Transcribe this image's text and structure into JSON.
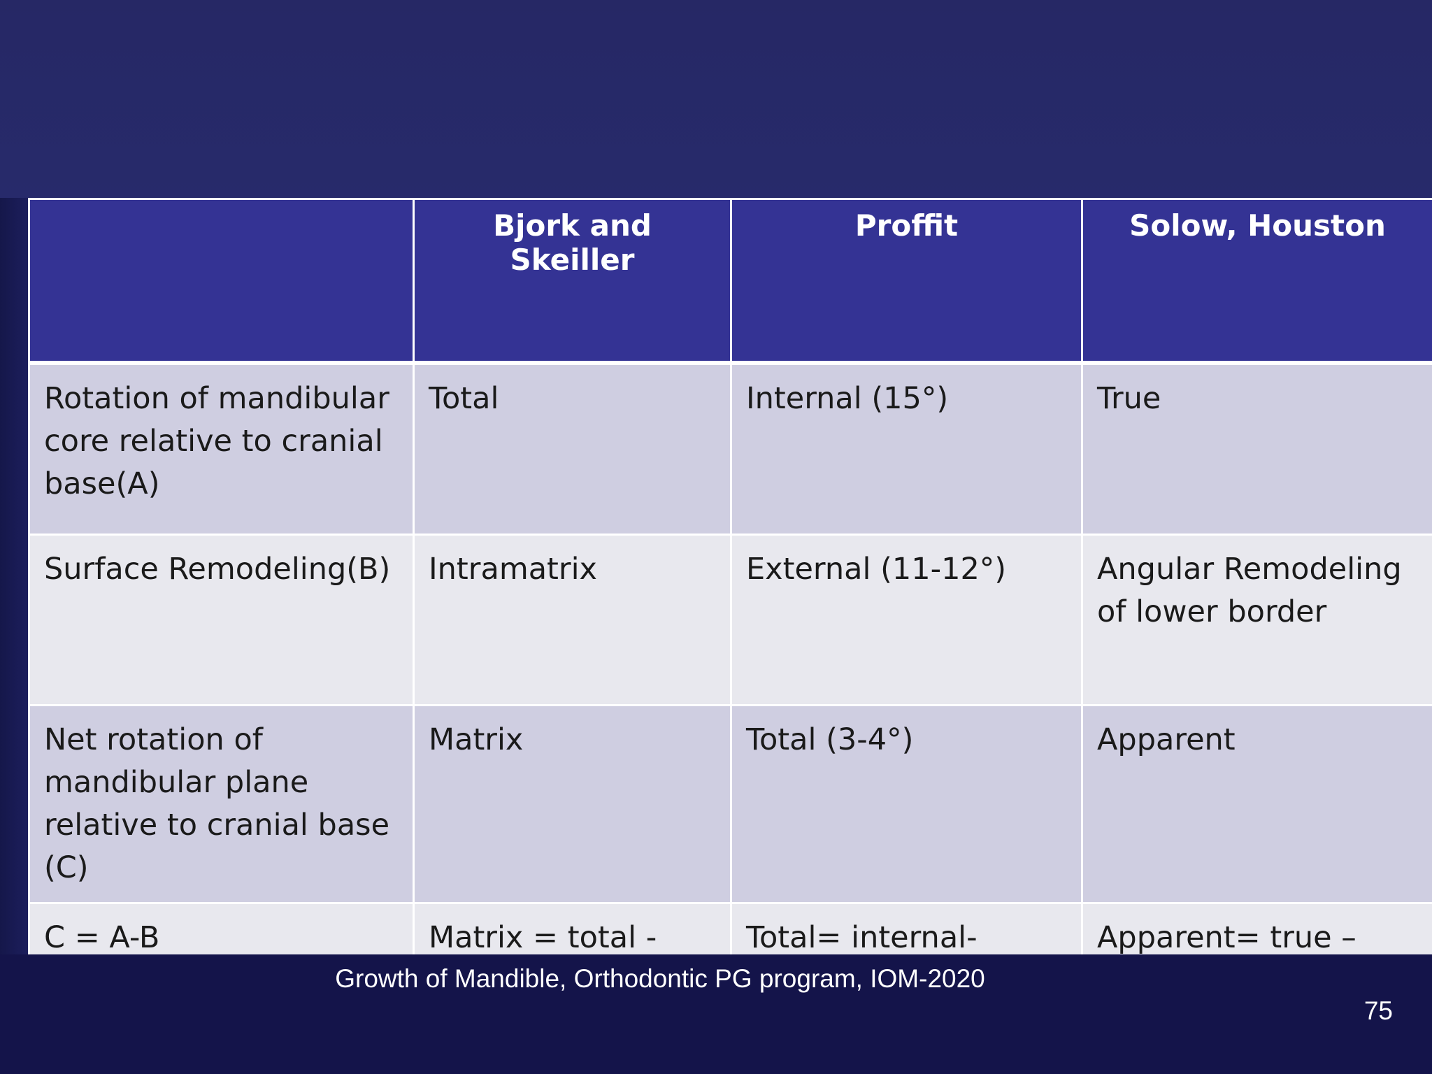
{
  "table": {
    "headers": [
      "",
      "Bjork and Skeiller",
      "Proffit",
      "Solow, Houston"
    ],
    "rows": [
      [
        "Rotation of mandibular core relative to cranial base(A)",
        "Total",
        "Internal (15°)",
        "True"
      ],
      [
        "Surface Remodeling(B)",
        "Intramatrix",
        "External (11-12°)",
        "Angular Remodeling of lower border"
      ],
      [
        "Net rotation of mandibular plane relative to cranial base (C)",
        "Matrix",
        "Total (3-4°)",
        "Apparent"
      ],
      [
        "C = A-B",
        "Matrix = total - intramatrix",
        "Total= internal-external",
        "Apparent= true – angular remodeling"
      ]
    ]
  },
  "footer": {
    "text": "Growth of Mandible, Orthodontic PG program, IOM-2020",
    "page_number": "75"
  },
  "colors": {
    "header_bg": "#343394",
    "row_odd_bg": "#cfcee1",
    "row_even_bg": "#e8e8ee",
    "slide_bg": "#262766",
    "footer_bg": "#14144a"
  }
}
